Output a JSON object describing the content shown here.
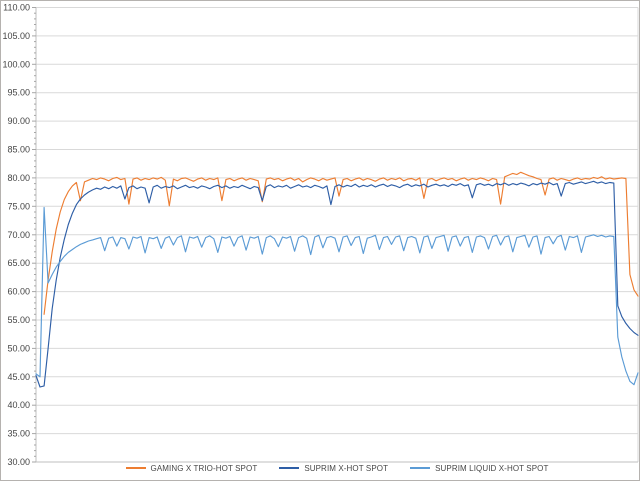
{
  "window": {
    "background": "#ffffff",
    "border_color": "#b5b2af"
  },
  "chart_data": {
    "type": "line",
    "title": "",
    "xlabel": "",
    "ylabel": "",
    "x_axis_labels_visible": false,
    "ylim": [
      30,
      110
    ],
    "y_major_step": 5,
    "y_minor_step": 1,
    "grid": "horizontal-major",
    "legend_position": "bottom-center",
    "y_tick_labels": [
      "110.00",
      "105.00",
      "100.00",
      "95.00",
      "90.00",
      "85.00",
      "80.00",
      "75.00",
      "70.00",
      "65.00",
      "60.00",
      "55.00",
      "50.00",
      "45.00",
      "40.00",
      "35.00",
      "30.00"
    ],
    "styles": {
      "gridline_color": "#d9d9d9",
      "axis_color": "#bfbfbf",
      "tick_color": "#a6a6a6",
      "label_color": "#454545",
      "line_width": 1.15
    },
    "series": [
      {
        "name": "GAMING X TRIO-HOT SPOT",
        "color": "#ED7D31",
        "values": [
          null,
          null,
          56.0,
          62.0,
          67.0,
          71.0,
          74.0,
          76.2,
          77.6,
          78.6,
          79.2,
          76.0,
          79.3,
          79.6,
          79.9,
          79.7,
          80.0,
          79.8,
          79.5,
          79.9,
          80.1,
          79.7,
          79.9,
          75.4,
          79.8,
          80.0,
          79.6,
          79.9,
          79.7,
          80.0,
          79.8,
          80.1,
          79.6,
          75.1,
          79.8,
          79.5,
          79.9,
          80.0,
          79.7,
          79.4,
          79.8,
          80.0,
          79.6,
          79.9,
          79.7,
          80.0,
          76.0,
          79.7,
          79.9,
          79.5,
          79.8,
          80.0,
          79.6,
          79.9,
          79.7,
          79.5,
          75.8,
          79.8,
          80.0,
          79.7,
          79.9,
          79.5,
          79.8,
          80.0,
          79.6,
          79.9,
          79.3,
          79.7,
          80.0,
          79.8,
          79.5,
          79.9,
          79.6,
          79.8,
          80.0,
          76.8,
          79.7,
          79.9,
          79.5,
          79.8,
          80.0,
          79.6,
          79.9,
          79.7,
          79.4,
          79.8,
          80.0,
          79.6,
          79.9,
          79.7,
          80.0,
          79.5,
          79.8,
          79.9,
          79.6,
          80.0,
          76.4,
          79.7,
          79.9,
          79.5,
          79.8,
          80.0,
          79.7,
          79.9,
          79.5,
          79.8,
          80.0,
          79.6,
          79.9,
          79.7,
          80.0,
          79.8,
          79.5,
          79.9,
          79.7,
          75.4,
          80.2,
          80.5,
          80.8,
          80.6,
          81.0,
          80.7,
          80.4,
          80.2,
          79.9,
          79.7,
          77.0,
          79.8,
          80.0,
          79.6,
          79.9,
          79.7,
          79.5,
          79.8,
          80.0,
          79.7,
          79.9,
          79.8,
          80.1,
          79.9,
          80.2,
          79.8,
          80.0,
          79.8,
          79.9,
          80.0,
          79.9,
          63.0,
          60.3,
          59.2
        ]
      },
      {
        "name": "SUPRIM X-HOT SPOT",
        "color": "#2E5EA6",
        "values": [
          45.2,
          43.2,
          43.4,
          50.0,
          57.0,
          62.0,
          66.0,
          69.2,
          71.8,
          73.8,
          75.3,
          76.3,
          77.0,
          77.5,
          77.9,
          78.2,
          78.0,
          78.4,
          78.1,
          78.5,
          78.2,
          78.6,
          76.3,
          78.3,
          78.6,
          78.1,
          78.4,
          78.2,
          75.6,
          78.4,
          78.7,
          78.2,
          78.5,
          78.3,
          78.6,
          78.1,
          78.4,
          78.7,
          78.3,
          78.5,
          78.2,
          78.6,
          78.4,
          78.1,
          78.5,
          78.7,
          78.3,
          78.6,
          78.2,
          78.5,
          78.3,
          78.7,
          78.4,
          78.1,
          78.5,
          78.3,
          76.0,
          78.5,
          78.8,
          78.3,
          78.6,
          78.4,
          78.7,
          78.2,
          78.5,
          78.8,
          78.4,
          78.6,
          78.3,
          78.7,
          78.5,
          78.2,
          78.6,
          75.3,
          78.5,
          78.8,
          78.4,
          78.7,
          78.5,
          78.9,
          78.4,
          78.7,
          78.5,
          78.8,
          78.4,
          78.7,
          78.9,
          78.5,
          78.8,
          78.6,
          78.3,
          78.7,
          78.9,
          78.5,
          78.8,
          78.6,
          78.9,
          78.4,
          78.7,
          78.9,
          78.6,
          78.8,
          78.5,
          78.9,
          78.7,
          79.0,
          78.6,
          78.8,
          76.5,
          78.8,
          79.0,
          78.7,
          78.9,
          78.6,
          79.0,
          78.8,
          79.1,
          78.7,
          79.0,
          78.8,
          79.1,
          78.9,
          78.6,
          79.0,
          78.8,
          79.1,
          78.9,
          79.2,
          78.8,
          79.0,
          76.8,
          79.0,
          79.2,
          78.9,
          79.1,
          79.3,
          79.0,
          79.2,
          79.4,
          79.1,
          79.3,
          79.0,
          79.2,
          79.1,
          57.5,
          55.6,
          54.4,
          53.5,
          52.8,
          52.3
        ]
      },
      {
        "name": "SUPRIM LIQUID X-HOT SPOT",
        "color": "#5B9BD5",
        "values": [
          45.5,
          45.0,
          74.8,
          61.5,
          63.0,
          64.3,
          65.3,
          66.2,
          66.9,
          67.4,
          67.9,
          68.3,
          68.6,
          68.9,
          69.1,
          69.3,
          69.5,
          67.2,
          69.4,
          69.6,
          68.0,
          69.5,
          69.3,
          67.5,
          69.6,
          69.4,
          69.7,
          66.8,
          69.5,
          69.3,
          69.6,
          67.6,
          69.4,
          69.7,
          68.2,
          69.5,
          69.8,
          67.0,
          69.6,
          69.4,
          69.7,
          67.8,
          69.5,
          69.8,
          69.3,
          66.9,
          69.6,
          69.4,
          69.7,
          68.0,
          69.5,
          69.8,
          67.3,
          69.6,
          69.4,
          69.7,
          66.6,
          69.5,
          69.8,
          69.3,
          67.9,
          69.6,
          69.4,
          69.7,
          67.1,
          69.5,
          69.8,
          69.4,
          66.5,
          69.6,
          69.9,
          67.7,
          69.5,
          69.7,
          69.4,
          67.0,
          69.6,
          69.8,
          68.1,
          69.5,
          69.7,
          66.7,
          69.4,
          69.6,
          69.9,
          67.4,
          69.5,
          69.7,
          68.3,
          69.6,
          69.8,
          67.2,
          69.5,
          69.7,
          69.4,
          66.8,
          69.6,
          69.8,
          67.6,
          69.5,
          69.7,
          69.9,
          67.1,
          69.6,
          69.8,
          68.0,
          69.5,
          69.7,
          66.9,
          69.6,
          69.8,
          69.5,
          67.5,
          69.7,
          69.9,
          68.2,
          69.6,
          69.8,
          67.0,
          69.5,
          69.7,
          69.9,
          67.8,
          69.6,
          69.8,
          66.6,
          69.5,
          69.7,
          68.4,
          69.6,
          69.9,
          67.3,
          69.7,
          69.5,
          69.8,
          66.9,
          69.6,
          69.8,
          70.0,
          69.7,
          69.9,
          69.6,
          69.8,
          69.7,
          52.0,
          48.5,
          46.0,
          44.2,
          43.6,
          45.7
        ]
      }
    ]
  }
}
